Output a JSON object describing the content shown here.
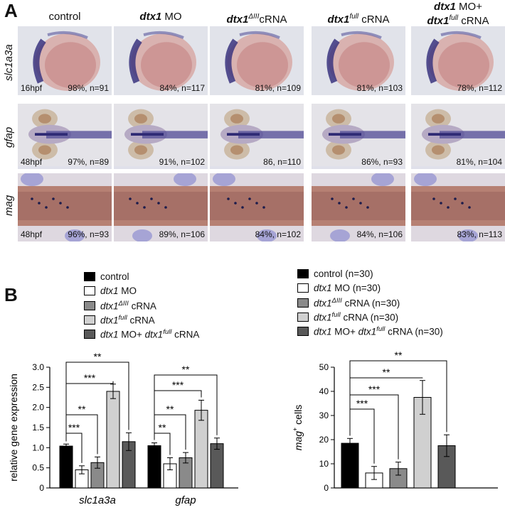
{
  "panel_a": {
    "letter": "A",
    "columns": [
      "control",
      "MO",
      "cRNA",
      "cRNA",
      "MO+"
    ],
    "column_parts": [
      {
        "gene": "",
        "sup": "",
        "rest": "control",
        "line2": ""
      },
      {
        "gene": "dtx1",
        "sup": "",
        "rest": " MO",
        "line2": ""
      },
      {
        "gene": "dtx1",
        "sup": "ΔIII",
        "rest": "cRNA",
        "line2": ""
      },
      {
        "gene": "dtx1",
        "sup": "full",
        "rest": " cRNA",
        "line2": ""
      },
      {
        "gene": "dtx1",
        "sup": "",
        "rest": " MO+",
        "line2": "cRNA"
      }
    ],
    "line2_gene": "dtx1",
    "line2_sup": "full",
    "rows": [
      {
        "label": "slc1a3a",
        "stage": "16hpf",
        "stats": [
          "98%, n=91",
          "84%, n=117",
          "81%, n=109",
          "81%, n=103",
          "78%, n=112"
        ]
      },
      {
        "label": "gfap",
        "stage": "48hpf",
        "stats": [
          "97%, n=89",
          "91%, n=102",
          "86, n=110",
          "86%, n=93",
          "81%, n=104"
        ]
      },
      {
        "label": "mag",
        "stage": "48hpf",
        "stats": [
          "96%, n=93",
          "89%, n=106",
          "84%, n=102",
          "84%, n=106",
          "83%, n=113"
        ]
      }
    ]
  },
  "panel_b": {
    "letter": "B",
    "legend_left": [
      {
        "gene": "",
        "sup": "",
        "rest": "control",
        "tail_gene": "",
        "tail_sup": "",
        "tail_rest": ""
      },
      {
        "gene": "dtx1",
        "sup": "",
        "rest": " MO",
        "tail_gene": "",
        "tail_sup": "",
        "tail_rest": ""
      },
      {
        "gene": "dtx1",
        "sup": "ΔIII",
        "rest": " cRNA",
        "tail_gene": "",
        "tail_sup": "",
        "tail_rest": ""
      },
      {
        "gene": "dtx1",
        "sup": "full",
        "rest": " cRNA",
        "tail_gene": "",
        "tail_sup": "",
        "tail_rest": ""
      },
      {
        "gene": "dtx1",
        "sup": "",
        "rest": " MO+ ",
        "tail_gene": "dtx1",
        "tail_sup": "full",
        "tail_rest": " cRNA"
      }
    ],
    "legend_right": [
      {
        "gene": "",
        "sup": "",
        "rest": "control (n=30)",
        "tail_gene": "",
        "tail_sup": "",
        "tail_rest": ""
      },
      {
        "gene": "dtx1",
        "sup": "",
        "rest": " MO (n=30)",
        "tail_gene": "",
        "tail_sup": "",
        "tail_rest": ""
      },
      {
        "gene": "dtx1",
        "sup": "ΔIII",
        "rest": " cRNA (n=30)",
        "tail_gene": "",
        "tail_sup": "",
        "tail_rest": ""
      },
      {
        "gene": "dtx1",
        "sup": "full",
        "rest": " cRNA (n=30)",
        "tail_gene": "",
        "tail_sup": "",
        "tail_rest": ""
      },
      {
        "gene": "dtx1",
        "sup": "",
        "rest": " MO+ ",
        "tail_gene": "dtx1",
        "tail_sup": "full",
        "tail_rest": " cRNA (n=30)"
      }
    ],
    "colors": [
      "#000000",
      "#ffffff",
      "#8a8a8a",
      "#d0d0d0",
      "#595959"
    ]
  },
  "chart_data": [
    {
      "type": "bar",
      "ylabel": "relative gene expression",
      "ylim": [
        0,
        3.0
      ],
      "yticks": [
        "0",
        "0.5",
        "1.0",
        "1.5",
        "2.0",
        "2.5",
        "3.0"
      ],
      "categories": [
        "slc1a3a",
        "gfap"
      ],
      "series": [
        {
          "values": [
            1.04,
            1.05
          ],
          "errors": [
            0.05,
            0.07
          ]
        },
        {
          "values": [
            0.45,
            0.6
          ],
          "errors": [
            0.1,
            0.15
          ]
        },
        {
          "values": [
            0.63,
            0.75
          ],
          "errors": [
            0.14,
            0.13
          ]
        },
        {
          "values": [
            2.4,
            1.93
          ],
          "errors": [
            0.18,
            0.25
          ]
        },
        {
          "values": [
            1.15,
            1.1
          ],
          "errors": [
            0.22,
            0.14
          ]
        }
      ],
      "significance": [
        {
          "cat": 0,
          "to": 1,
          "label": "***"
        },
        {
          "cat": 0,
          "to": 2,
          "label": "**"
        },
        {
          "cat": 0,
          "to": 3,
          "label": "***"
        },
        {
          "cat": 0,
          "to": 4,
          "label": "**"
        },
        {
          "cat": 1,
          "to": 1,
          "label": "**"
        },
        {
          "cat": 1,
          "to": 2,
          "label": "**"
        },
        {
          "cat": 1,
          "to": 3,
          "label": "***"
        },
        {
          "cat": 1,
          "to": 4,
          "label": "**"
        }
      ]
    },
    {
      "type": "bar",
      "ylabel_gene": "mag",
      "ylabel_sup": "+",
      "ylabel_rest": " cells",
      "ylim": [
        0,
        50
      ],
      "yticks": [
        "0",
        "10",
        "20",
        "30",
        "40",
        "50"
      ],
      "series": [
        {
          "values": [
            18.5
          ],
          "errors": [
            2.0
          ]
        },
        {
          "values": [
            6.2
          ],
          "errors": [
            2.7
          ]
        },
        {
          "values": [
            8.0
          ],
          "errors": [
            2.7
          ]
        },
        {
          "values": [
            37.5
          ],
          "errors": [
            7.0
          ]
        },
        {
          "values": [
            17.5
          ],
          "errors": [
            4.5
          ]
        }
      ],
      "significance": [
        {
          "to": 1,
          "label": "***"
        },
        {
          "to": 2,
          "label": "***"
        },
        {
          "to": 3,
          "label": "**"
        },
        {
          "to": 4,
          "label": "**"
        }
      ]
    }
  ]
}
